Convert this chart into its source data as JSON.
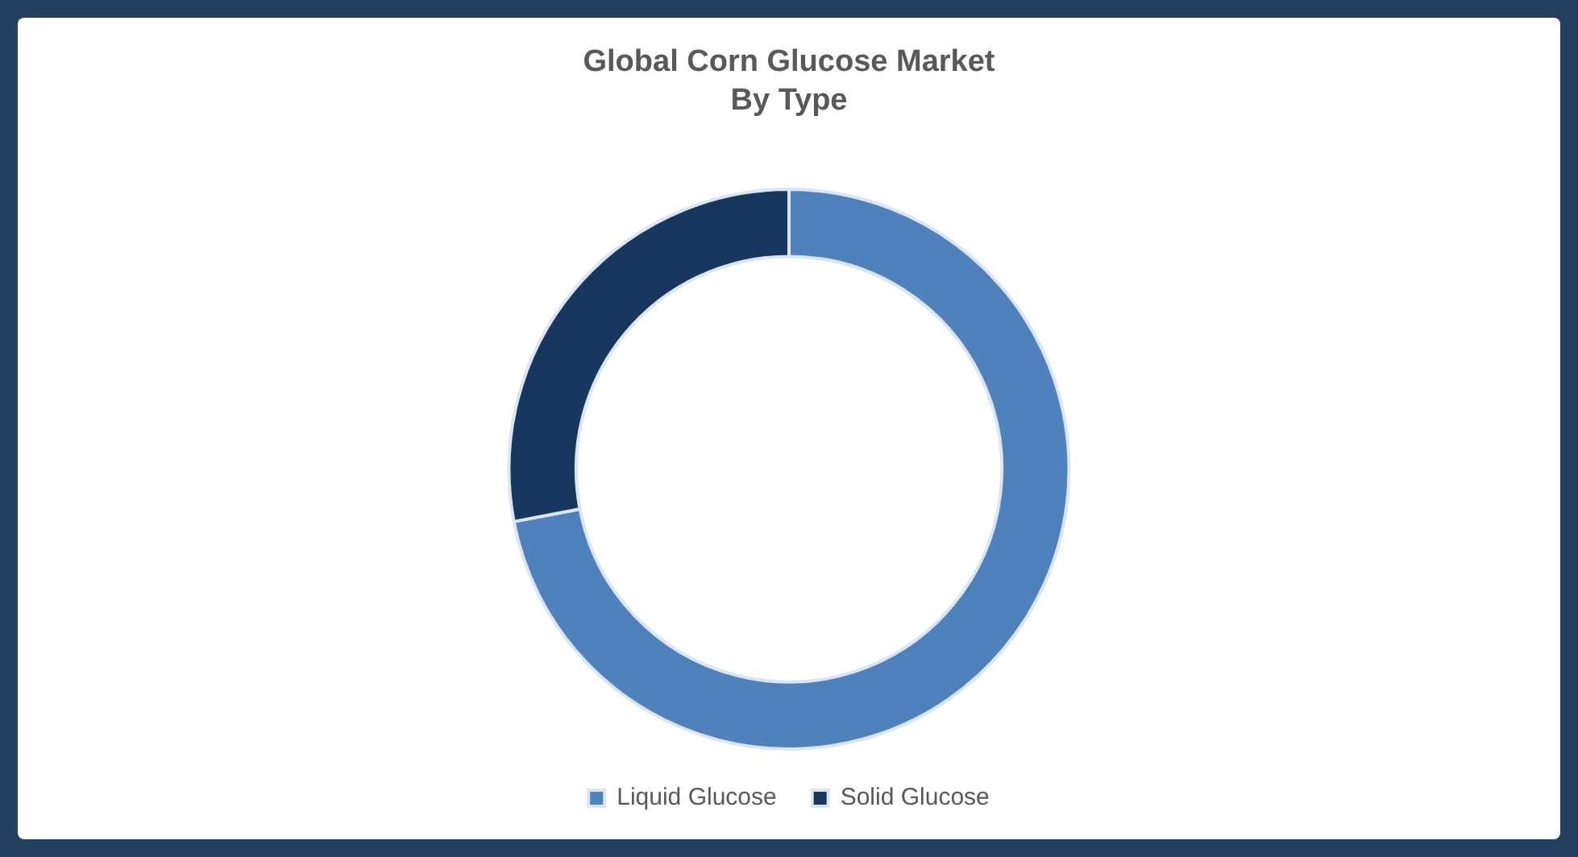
{
  "chart_data": {
    "type": "donut",
    "title": "Global Corn Glucose Market\nBy Type",
    "categories": [
      "Liquid Glucose",
      "Solid Glucose"
    ],
    "values": [
      72,
      28
    ],
    "colors": [
      "#4f81bd",
      "#17375e"
    ],
    "legend": "bottom"
  }
}
